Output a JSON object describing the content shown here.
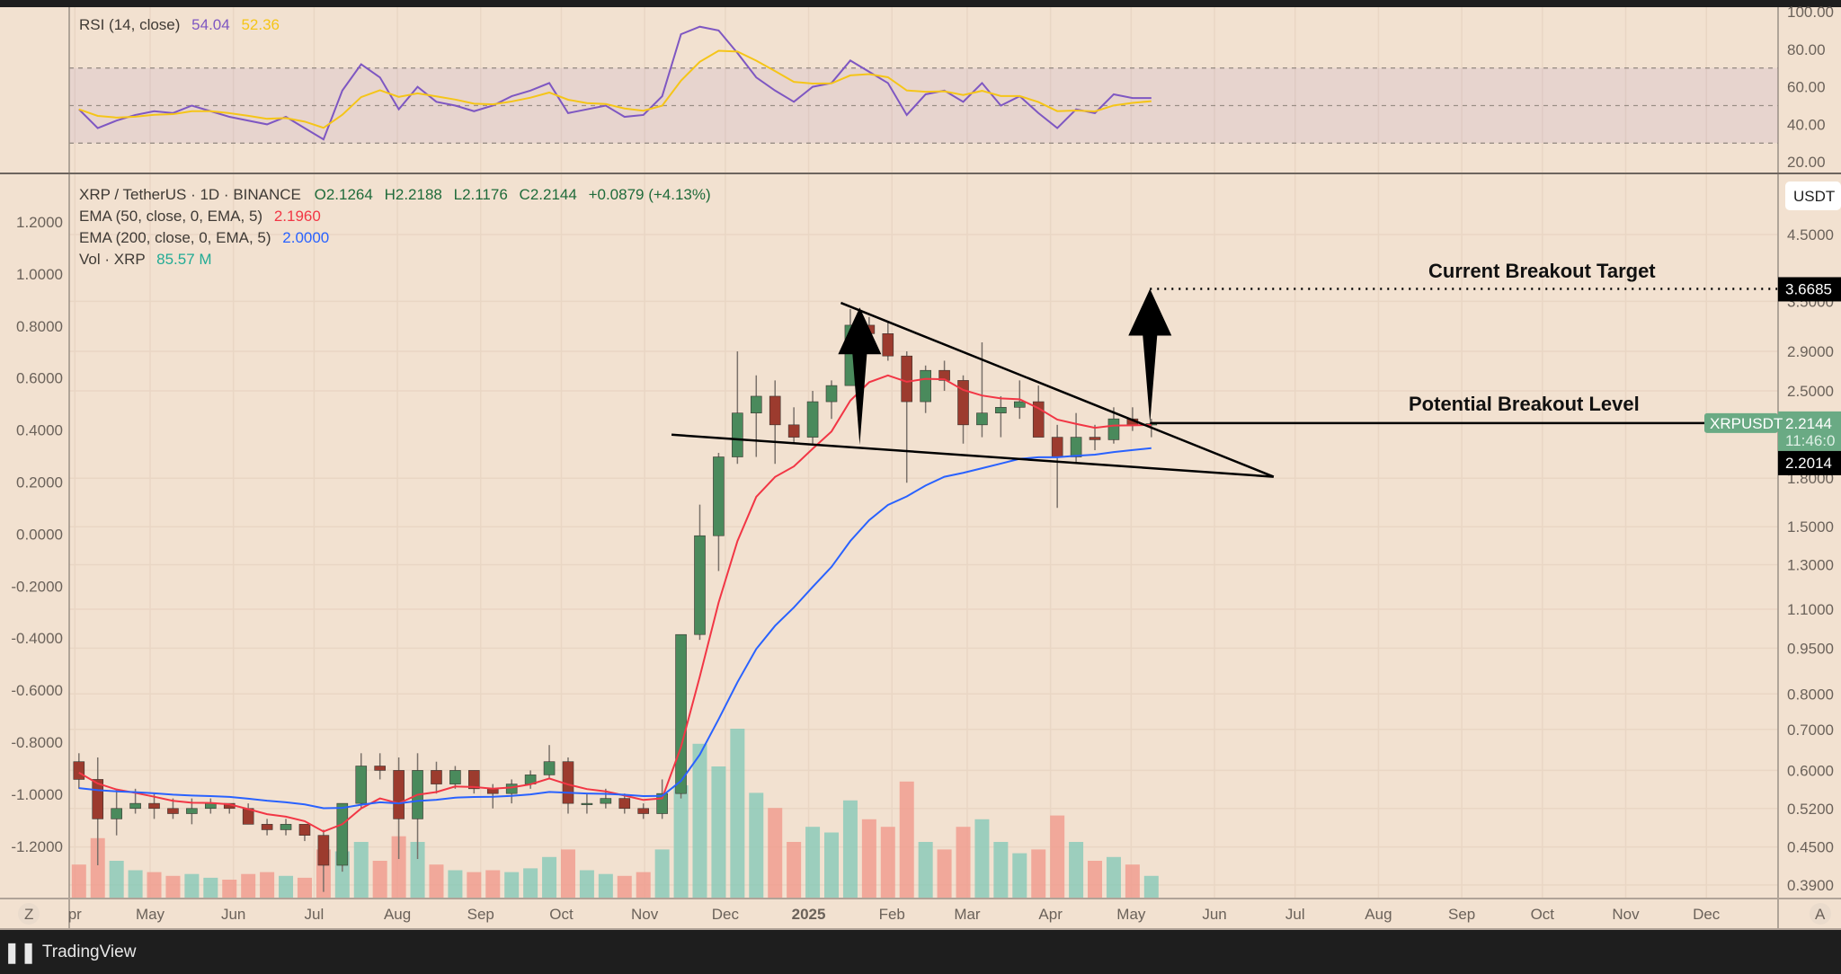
{
  "colors": {
    "background": "#f2e1d0",
    "up": "#4a8a5c",
    "down": "#9c3b2e",
    "vol_up": "#86c9b8",
    "vol_down": "#f09a8c",
    "ema50": "#f23645",
    "ema200": "#2962ff",
    "rsi": "#7e57c2",
    "rsi_ma": "#f5c518",
    "price_label": "#6aaa84",
    "drawing": "#000000"
  },
  "rsi_legend": {
    "title": "RSI (14, close)",
    "value": "54.04",
    "ma_value": "52.36"
  },
  "legend": {
    "symbol": "XRP / TetherUS · 1D · BINANCE",
    "open": "O2.1264",
    "high": "H2.2188",
    "low": "L2.1176",
    "close": "C2.2144",
    "change": "+0.0879 (+4.13%)",
    "ema50_label": "EMA (50, close, 0, EMA, 5)",
    "ema50_value": "2.1960",
    "ema200_label": "EMA (200, close, 0, EMA, 5)",
    "ema200_value": "2.0000",
    "vol_label": "Vol · XRP",
    "vol_value": "85.57 M"
  },
  "axis": {
    "currency": "USDT",
    "price_ticks": [
      "4.5000",
      "3.5000",
      "2.9000",
      "2.5000",
      "1.8000",
      "1.5000",
      "1.3000",
      "1.1000",
      "0.9500",
      "0.8000",
      "0.7000",
      "0.6000",
      "0.5200",
      "0.4500",
      "0.3900"
    ],
    "left_ticks": [
      "1.2000",
      "1.0000",
      "0.8000",
      "0.6000",
      "0.4000",
      "0.2000",
      "0.0000",
      "-0.2000",
      "-0.4000",
      "-0.6000",
      "-0.8000",
      "-1.0000",
      "-1.2000"
    ],
    "rsi_ticks": [
      "100.00",
      "80.00",
      "60.00",
      "40.00",
      "20.00"
    ],
    "time_ticks": [
      {
        "label": "pr",
        "date": "2024-04-03"
      },
      {
        "label": "May",
        "date": "2024-05-01"
      },
      {
        "label": "Jun",
        "date": "2024-06-01"
      },
      {
        "label": "Jul",
        "date": "2024-07-01"
      },
      {
        "label": "Aug",
        "date": "2024-08-01"
      },
      {
        "label": "Sep",
        "date": "2024-09-01"
      },
      {
        "label": "Oct",
        "date": "2024-10-01"
      },
      {
        "label": "Nov",
        "date": "2024-11-01"
      },
      {
        "label": "Dec",
        "date": "2024-12-01"
      },
      {
        "label": "2025",
        "date": "2025-01-01",
        "bold": true
      },
      {
        "label": "Feb",
        "date": "2025-02-01"
      },
      {
        "label": "Mar",
        "date": "2025-03-01"
      },
      {
        "label": "Apr",
        "date": "2025-04-01"
      },
      {
        "label": "May",
        "date": "2025-05-01"
      },
      {
        "label": "Jun",
        "date": "2025-06-01"
      },
      {
        "label": "Jul",
        "date": "2025-07-01"
      },
      {
        "label": "Aug",
        "date": "2025-08-01"
      },
      {
        "label": "Sep",
        "date": "2025-09-01"
      },
      {
        "label": "Oct",
        "date": "2025-10-01"
      },
      {
        "label": "Nov",
        "date": "2025-11-01"
      },
      {
        "label": "Dec",
        "date": "2025-12-01"
      }
    ],
    "zoom_left": "Z",
    "auto_right": "A",
    "last_price": "2.2144",
    "countdown": "11:46:0",
    "symbol_tag": "XRPUSDT",
    "target_price": "3.6685",
    "ema_price": "2.2014"
  },
  "annotations": {
    "target_label": "Current Breakout Target",
    "breakout_label": "Potential Breakout Level"
  },
  "chart_data": {
    "type": "candlestick",
    "price_scale": "log",
    "grid": true,
    "price_range": [
      0.39,
      4.5
    ],
    "rsi_range": [
      20,
      100
    ],
    "rsi_bands": [
      30,
      50,
      70
    ],
    "candles_weekly": [
      [
        "2024-04-01",
        0.62,
        0.64,
        0.56,
        0.58
      ],
      [
        "2024-04-08",
        0.58,
        0.63,
        0.42,
        0.5
      ],
      [
        "2024-04-15",
        0.5,
        0.56,
        0.47,
        0.52
      ],
      [
        "2024-04-22",
        0.52,
        0.56,
        0.51,
        0.53
      ],
      [
        "2024-04-29",
        0.53,
        0.55,
        0.5,
        0.52
      ],
      [
        "2024-05-06",
        0.52,
        0.54,
        0.5,
        0.51
      ],
      [
        "2024-05-13",
        0.51,
        0.54,
        0.49,
        0.52
      ],
      [
        "2024-05-20",
        0.52,
        0.54,
        0.51,
        0.53
      ],
      [
        "2024-05-27",
        0.53,
        0.53,
        0.51,
        0.52
      ],
      [
        "2024-06-03",
        0.52,
        0.53,
        0.49,
        0.49
      ],
      [
        "2024-06-10",
        0.49,
        0.5,
        0.47,
        0.48
      ],
      [
        "2024-06-17",
        0.48,
        0.5,
        0.47,
        0.49
      ],
      [
        "2024-06-24",
        0.49,
        0.49,
        0.46,
        0.47
      ],
      [
        "2024-07-01",
        0.47,
        0.48,
        0.38,
        0.42
      ],
      [
        "2024-07-08",
        0.42,
        0.53,
        0.41,
        0.53
      ],
      [
        "2024-07-15",
        0.53,
        0.64,
        0.52,
        0.61
      ],
      [
        "2024-07-22",
        0.61,
        0.64,
        0.58,
        0.6
      ],
      [
        "2024-07-29",
        0.6,
        0.63,
        0.43,
        0.5
      ],
      [
        "2024-08-05",
        0.5,
        0.64,
        0.43,
        0.6
      ],
      [
        "2024-08-12",
        0.6,
        0.62,
        0.55,
        0.57
      ],
      [
        "2024-08-19",
        0.57,
        0.61,
        0.56,
        0.6
      ],
      [
        "2024-08-26",
        0.6,
        0.6,
        0.55,
        0.56
      ],
      [
        "2024-09-02",
        0.56,
        0.57,
        0.52,
        0.55
      ],
      [
        "2024-09-09",
        0.55,
        0.58,
        0.53,
        0.57
      ],
      [
        "2024-09-16",
        0.57,
        0.6,
        0.56,
        0.59
      ],
      [
        "2024-09-23",
        0.59,
        0.66,
        0.58,
        0.62
      ],
      [
        "2024-09-30",
        0.62,
        0.63,
        0.51,
        0.53
      ],
      [
        "2024-10-07",
        0.53,
        0.55,
        0.51,
        0.53
      ],
      [
        "2024-10-14",
        0.53,
        0.56,
        0.52,
        0.54
      ],
      [
        "2024-10-21",
        0.54,
        0.55,
        0.51,
        0.52
      ],
      [
        "2024-10-28",
        0.52,
        0.53,
        0.5,
        0.51
      ],
      [
        "2024-11-04",
        0.51,
        0.58,
        0.5,
        0.55
      ],
      [
        "2024-11-11",
        0.55,
        1.0,
        0.54,
        1.0
      ],
      [
        "2024-11-18",
        1.0,
        1.63,
        0.98,
        1.45
      ],
      [
        "2024-11-25",
        1.45,
        1.98,
        1.27,
        1.95
      ],
      [
        "2024-12-02",
        1.95,
        2.9,
        1.9,
        2.3
      ],
      [
        "2024-12-09",
        2.3,
        2.65,
        1.95,
        2.45
      ],
      [
        "2024-12-16",
        2.45,
        2.6,
        1.9,
        2.2
      ],
      [
        "2024-12-23",
        2.2,
        2.35,
        2.05,
        2.1
      ],
      [
        "2024-12-30",
        2.1,
        2.5,
        2.05,
        2.4
      ],
      [
        "2025-01-06",
        2.4,
        2.6,
        2.25,
        2.55
      ],
      [
        "2025-01-13",
        2.55,
        3.4,
        2.55,
        3.2
      ],
      [
        "2025-01-20",
        3.2,
        3.3,
        2.95,
        3.1
      ],
      [
        "2025-01-27",
        3.1,
        3.25,
        2.8,
        2.85
      ],
      [
        "2025-02-03",
        2.85,
        2.9,
        1.77,
        2.4
      ],
      [
        "2025-02-10",
        2.4,
        2.75,
        2.3,
        2.7
      ],
      [
        "2025-02-17",
        2.7,
        2.8,
        2.5,
        2.6
      ],
      [
        "2025-02-24",
        2.6,
        2.65,
        2.05,
        2.2
      ],
      [
        "2025-03-03",
        2.2,
        3.0,
        2.1,
        2.3
      ],
      [
        "2025-03-10",
        2.3,
        2.45,
        2.1,
        2.35
      ],
      [
        "2025-03-17",
        2.35,
        2.6,
        2.25,
        2.4
      ],
      [
        "2025-03-24",
        2.4,
        2.55,
        2.1,
        2.1
      ],
      [
        "2025-03-31",
        2.1,
        2.2,
        1.61,
        1.95
      ],
      [
        "2025-04-07",
        1.95,
        2.3,
        1.9,
        2.1
      ],
      [
        "2025-04-14",
        2.1,
        2.2,
        2.0,
        2.08
      ],
      [
        "2025-04-21",
        2.08,
        2.35,
        2.05,
        2.25
      ],
      [
        "2025-04-28",
        2.25,
        2.35,
        2.15,
        2.2
      ],
      [
        "2025-05-05",
        2.2,
        2.25,
        2.1,
        2.21
      ]
    ],
    "volume_weekly_m": [
      180,
      320,
      200,
      150,
      140,
      120,
      130,
      110,
      100,
      130,
      140,
      120,
      110,
      260,
      250,
      300,
      200,
      330,
      300,
      180,
      150,
      140,
      150,
      140,
      160,
      220,
      260,
      150,
      130,
      120,
      140,
      260,
      600,
      820,
      700,
      900,
      560,
      480,
      300,
      380,
      350,
      520,
      420,
      380,
      620,
      300,
      260,
      380,
      420,
      300,
      240,
      260,
      440,
      300,
      200,
      220,
      180,
      120
    ],
    "rsi_weekly": [
      48,
      38,
      42,
      45,
      47,
      46,
      50,
      47,
      44,
      42,
      40,
      44,
      38,
      32,
      58,
      72,
      65,
      48,
      60,
      52,
      50,
      47,
      50,
      55,
      58,
      62,
      46,
      48,
      50,
      44,
      45,
      55,
      88,
      92,
      90,
      78,
      65,
      58,
      52,
      60,
      62,
      74,
      68,
      62,
      45,
      56,
      58,
      52,
      62,
      50,
      55,
      46,
      38,
      48,
      46,
      56,
      54,
      54
    ],
    "drawings": {
      "upper_trendline": [
        [
          "2025-01-13",
          3.48
        ],
        [
          "2025-06-23",
          1.81
        ]
      ],
      "lower_trendline": [
        [
          "2024-11-11",
          2.12
        ],
        [
          "2025-06-23",
          1.81
        ]
      ],
      "flagpole_arrow": [
        [
          "2025-01-20",
          2.04
        ],
        [
          "2025-01-20",
          3.42
        ]
      ],
      "target_arrow": [
        [
          "2025-05-08",
          2.2144
        ],
        [
          "2025-05-08",
          3.6685
        ]
      ],
      "breakout_level": 2.2144,
      "target_level": 3.6685
    }
  },
  "footer": {
    "brand": "TradingView"
  }
}
